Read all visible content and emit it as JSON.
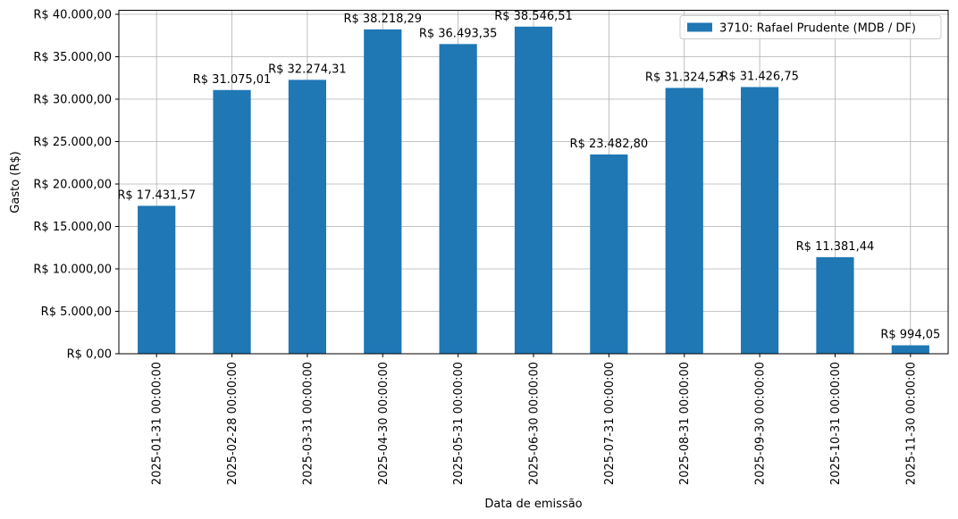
{
  "chart_data": {
    "type": "bar",
    "x_label": "Data de emissão",
    "y_label": "Gasto (R$)",
    "categories": [
      "2025-01-31 00:00:00",
      "2025-02-28 00:00:00",
      "2025-03-31 00:00:00",
      "2025-04-30 00:00:00",
      "2025-05-31 00:00:00",
      "2025-06-30 00:00:00",
      "2025-07-31 00:00:00",
      "2025-08-31 00:00:00",
      "2025-09-30 00:00:00",
      "2025-10-31 00:00:00",
      "2025-11-30 00:00:00"
    ],
    "series": [
      {
        "name": "3710: Rafael Prudente (MDB / DF)",
        "color": "#1f77b4",
        "values": [
          17431.57,
          31075.01,
          32274.31,
          38218.29,
          36493.35,
          38546.51,
          23482.8,
          31324.52,
          31426.75,
          11381.44,
          994.05
        ],
        "value_labels": [
          "R$ 17.431,57",
          "R$ 31.075,01",
          "R$ 32.274,31",
          "R$ 38.218,29",
          "R$ 36.493,35",
          "R$ 38.546,51",
          "R$ 23.482,80",
          "R$ 31.324,52",
          "R$ 31.426,75",
          "R$ 11.381,44",
          "R$ 994,05"
        ]
      }
    ],
    "ylim": [
      0,
      40473.84
    ],
    "yticks": [
      {
        "value": 0,
        "label": "R$ 0,00"
      },
      {
        "value": 5000,
        "label": "R$ 5.000,00"
      },
      {
        "value": 10000,
        "label": "R$ 10.000,00"
      },
      {
        "value": 15000,
        "label": "R$ 15.000,00"
      },
      {
        "value": 20000,
        "label": "R$ 20.000,00"
      },
      {
        "value": 25000,
        "label": "R$ 25.000,00"
      },
      {
        "value": 30000,
        "label": "R$ 30.000,00"
      },
      {
        "value": 35000,
        "label": "R$ 35.000,00"
      },
      {
        "value": 40000,
        "label": "R$ 40.000,00"
      }
    ],
    "grid": true,
    "legend": "upper right"
  }
}
